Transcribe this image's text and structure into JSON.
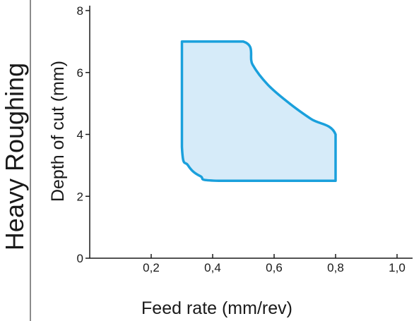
{
  "chart_data": {
    "type": "area",
    "title": "",
    "side_title": "Heavy Roughing",
    "xlabel": "Feed rate (mm/rev)",
    "ylabel": "Depth of cut (mm)",
    "xlim": [
      0,
      1.0
    ],
    "ylim": [
      0,
      8
    ],
    "x_ticks": [
      0.2,
      0.4,
      0.6,
      0.8,
      1.0
    ],
    "x_tick_labels": [
      "0,2",
      "0,4",
      "0,6",
      "0,8",
      "1,0"
    ],
    "y_ticks": [
      0,
      2,
      4,
      6,
      8
    ],
    "y_tick_labels": [
      "0",
      "2",
      "4",
      "6",
      "8"
    ],
    "grid": false,
    "region": {
      "name": "",
      "fill": "#d6ebf9",
      "stroke": "#1aa0dc",
      "boundary": [
        {
          "x": 0.3,
          "y": 7.0
        },
        {
          "x": 0.5,
          "y": 7.0
        },
        {
          "x": 0.53,
          "y": 6.25
        },
        {
          "x": 0.58,
          "y": 5.6
        },
        {
          "x": 0.65,
          "y": 5.0
        },
        {
          "x": 0.72,
          "y": 4.5
        },
        {
          "x": 0.8,
          "y": 4.0
        },
        {
          "x": 0.8,
          "y": 2.5
        },
        {
          "x": 0.42,
          "y": 2.5
        },
        {
          "x": 0.36,
          "y": 2.65
        },
        {
          "x": 0.32,
          "y": 3.0
        },
        {
          "x": 0.3,
          "y": 3.6
        }
      ]
    }
  }
}
